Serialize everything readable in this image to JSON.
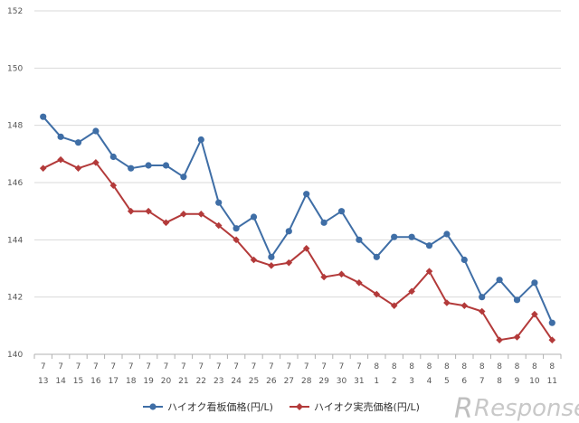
{
  "chart_data": {
    "type": "line",
    "title": "",
    "xlabel": "",
    "ylabel": "",
    "ylim": [
      140,
      152
    ],
    "yticks": [
      140,
      142,
      144,
      146,
      148,
      150,
      152
    ],
    "grid": true,
    "legend": "bottom-center",
    "categories": [
      {
        "month": "7",
        "day": "13"
      },
      {
        "month": "7",
        "day": "14"
      },
      {
        "month": "7",
        "day": "15"
      },
      {
        "month": "7",
        "day": "16"
      },
      {
        "month": "7",
        "day": "17"
      },
      {
        "month": "7",
        "day": "18"
      },
      {
        "month": "7",
        "day": "19"
      },
      {
        "month": "7",
        "day": "20"
      },
      {
        "month": "7",
        "day": "21"
      },
      {
        "month": "7",
        "day": "22"
      },
      {
        "month": "7",
        "day": "23"
      },
      {
        "month": "7",
        "day": "24"
      },
      {
        "month": "7",
        "day": "25"
      },
      {
        "month": "7",
        "day": "26"
      },
      {
        "month": "7",
        "day": "27"
      },
      {
        "month": "7",
        "day": "28"
      },
      {
        "month": "7",
        "day": "29"
      },
      {
        "month": "7",
        "day": "30"
      },
      {
        "month": "7",
        "day": "31"
      },
      {
        "month": "8",
        "day": "1"
      },
      {
        "month": "8",
        "day": "2"
      },
      {
        "month": "8",
        "day": "3"
      },
      {
        "month": "8",
        "day": "4"
      },
      {
        "month": "8",
        "day": "5"
      },
      {
        "month": "8",
        "day": "6"
      },
      {
        "month": "8",
        "day": "7"
      },
      {
        "month": "8",
        "day": "8"
      },
      {
        "month": "8",
        "day": "9"
      },
      {
        "month": "8",
        "day": "10"
      },
      {
        "month": "8",
        "day": "11"
      }
    ],
    "series": [
      {
        "name": "ハイオク看板価格(円/L)",
        "color": "#3f6ea6",
        "marker": "circle",
        "values": [
          148.3,
          147.6,
          147.4,
          147.8,
          146.9,
          146.5,
          146.6,
          146.6,
          146.2,
          147.5,
          145.3,
          144.4,
          144.8,
          143.4,
          144.3,
          145.6,
          144.6,
          145.0,
          144.0,
          143.4,
          144.1,
          144.1,
          143.8,
          144.2,
          143.3,
          142.0,
          142.6,
          141.9,
          142.5,
          141.1
        ]
      },
      {
        "name": "ハイオク実売価格(円/L)",
        "color": "#b33a3a",
        "marker": "diamond",
        "values": [
          146.5,
          146.8,
          146.5,
          146.7,
          145.9,
          145.0,
          145.0,
          144.6,
          144.9,
          144.9,
          144.5,
          144.0,
          143.3,
          143.1,
          143.2,
          143.7,
          142.7,
          142.8,
          142.5,
          142.1,
          141.7,
          142.2,
          142.9,
          141.8,
          141.7,
          141.5,
          140.5,
          140.6,
          141.4,
          140.5
        ]
      }
    ]
  },
  "watermark": {
    "brand_main": "Response",
    "brand_suffix": "."
  }
}
